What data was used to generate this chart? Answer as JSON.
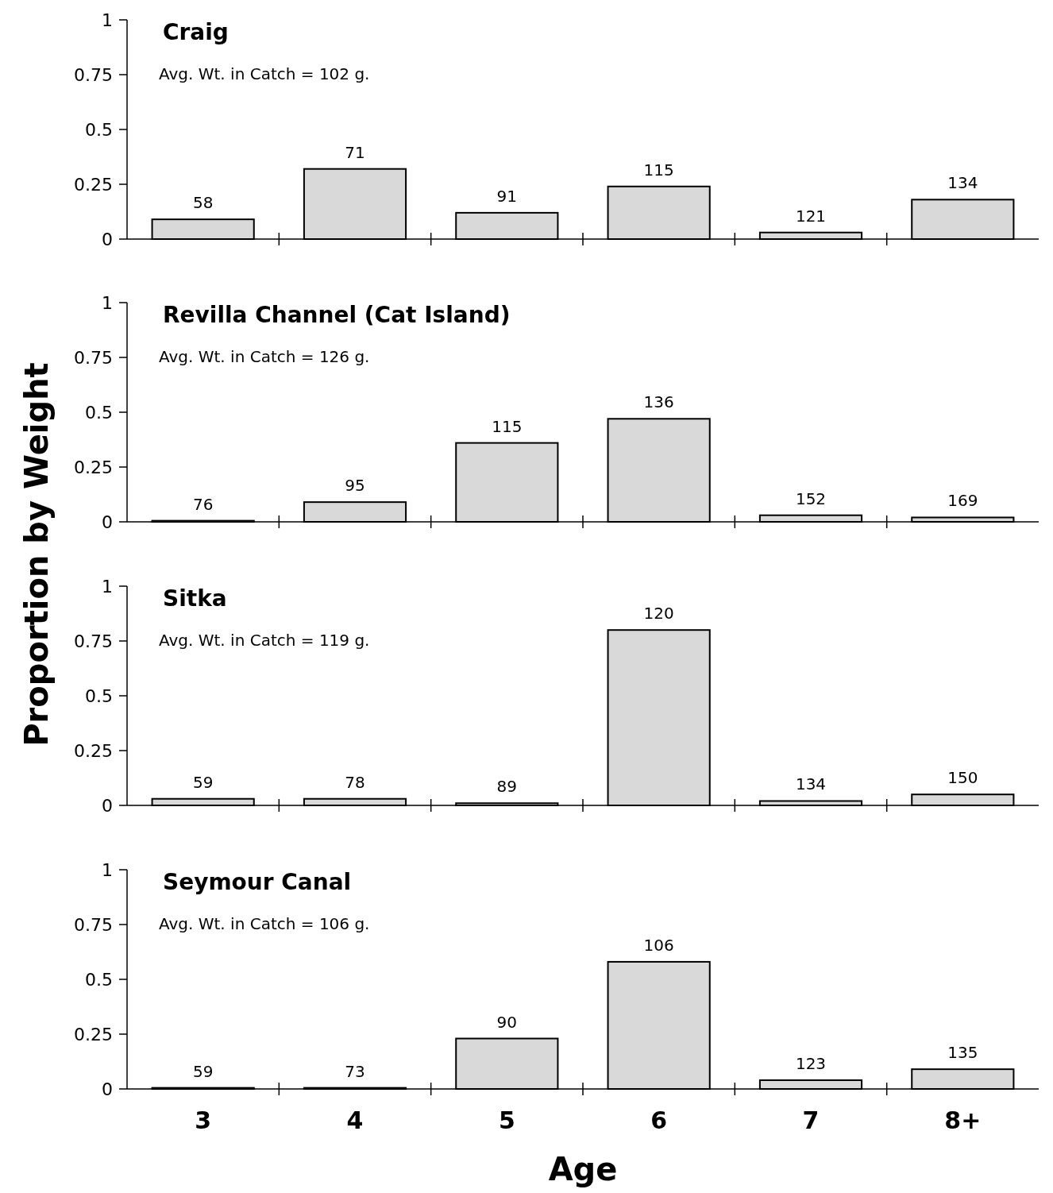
{
  "chart_data": [
    {
      "type": "bar",
      "title": "Craig",
      "annotations": [
        "Avg. Wt. in Catch = 102 g.",
        {
          "text": "58",
          "x": "3",
          "y": 0.09
        },
        {
          "text": "71",
          "x": "4",
          "y": 0.32
        },
        {
          "text": "91",
          "x": "5",
          "y": 0.12
        },
        {
          "text": "115",
          "x": "6",
          "y": 0.24
        },
        {
          "text": "121",
          "x": "7",
          "y": 0.03
        },
        {
          "text": "134",
          "x": "8+",
          "y": 0.18
        }
      ],
      "ylabel": "Proportion by Weight",
      "categories": [
        "3",
        "4",
        "5",
        "6",
        "7",
        "8+"
      ],
      "values": [
        0.09,
        0.32,
        0.12,
        0.24,
        0.03,
        0.18
      ],
      "color": "#d9d9d9",
      "ylim": [
        0,
        1
      ],
      "yticks": [
        0,
        0.25,
        0.5,
        0.75,
        1
      ],
      "tick_labels": "y"
    },
    {
      "type": "bar",
      "title": "Revilla Channel (Cat Island)",
      "annotations": [
        "Avg. Wt. in Catch = 126 g.",
        {
          "text": "76",
          "x": "3",
          "y": 0.005
        },
        {
          "text": "95",
          "x": "4",
          "y": 0.09
        },
        {
          "text": "115",
          "x": "5",
          "y": 0.36
        },
        {
          "text": "136",
          "x": "6",
          "y": 0.47
        },
        {
          "text": "152",
          "x": "7",
          "y": 0.03
        },
        {
          "text": "169",
          "x": "8+",
          "y": 0.02
        }
      ],
      "categories": [
        "3",
        "4",
        "5",
        "6",
        "7",
        "8+"
      ],
      "values": [
        0.005,
        0.09,
        0.36,
        0.47,
        0.03,
        0.02
      ],
      "color": "#d9d9d9",
      "ylim": [
        0,
        1
      ],
      "yticks": [
        0,
        0.25,
        0.5,
        0.75,
        1
      ],
      "tick_labels": "y"
    },
    {
      "type": "bar",
      "title": "Sitka",
      "annotations": [
        "Avg. Wt. in Catch = 119 g.",
        {
          "text": "59",
          "x": "3",
          "y": 0.03
        },
        {
          "text": "78",
          "x": "4",
          "y": 0.03
        },
        {
          "text": "89",
          "x": "5",
          "y": 0.01
        },
        {
          "text": "120",
          "x": "6",
          "y": 0.8
        },
        {
          "text": "134",
          "x": "7",
          "y": 0.02
        },
        {
          "text": "150",
          "x": "8+",
          "y": 0.05
        }
      ],
      "categories": [
        "3",
        "4",
        "5",
        "6",
        "7",
        "8+"
      ],
      "values": [
        0.03,
        0.03,
        0.01,
        0.8,
        0.02,
        0.05
      ],
      "color": "#d9d9d9",
      "ylim": [
        0,
        1
      ],
      "yticks": [
        0,
        0.25,
        0.5,
        0.75,
        1
      ],
      "tick_labels": "y"
    },
    {
      "type": "bar",
      "title": "Seymour Canal",
      "annotations": [
        "Avg. Wt. in Catch = 106 g.",
        {
          "text": "59",
          "x": "3",
          "y": 0.005
        },
        {
          "text": "73",
          "x": "4",
          "y": 0.005
        },
        {
          "text": "90",
          "x": "5",
          "y": 0.23
        },
        {
          "text": "106",
          "x": "6",
          "y": 0.58
        },
        {
          "text": "123",
          "x": "7",
          "y": 0.04
        },
        {
          "text": "135",
          "x": "8+",
          "y": 0.09
        }
      ],
      "xlabel": "Age",
      "categories": [
        "3",
        "4",
        "5",
        "6",
        "7",
        "8+"
      ],
      "values": [
        0.005,
        0.005,
        0.23,
        0.58,
        0.04,
        0.09
      ],
      "color": "#d9d9d9",
      "ylim": [
        0,
        1
      ],
      "yticks": [
        0,
        0.25,
        0.5,
        0.75,
        1
      ]
    }
  ]
}
